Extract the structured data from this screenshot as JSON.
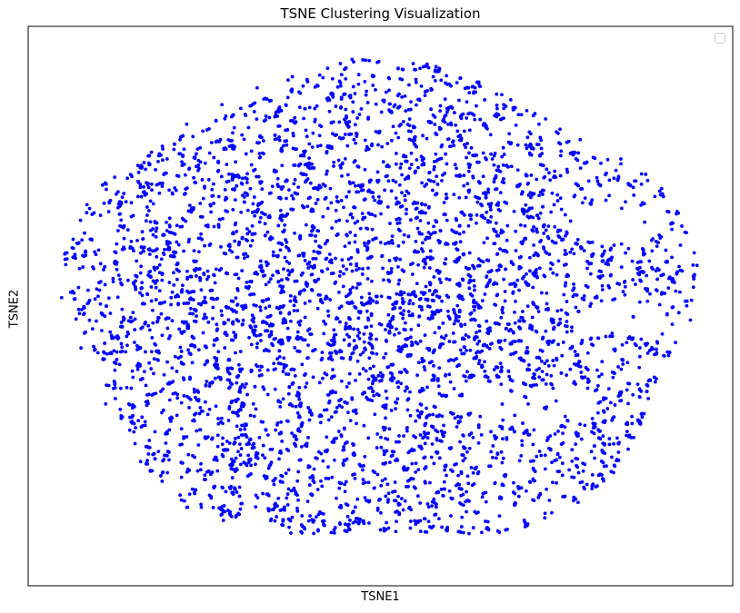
{
  "chart_data": {
    "type": "scatter",
    "title": "TSNE Clustering Visualization",
    "xlabel": "TSNE1",
    "ylabel": "TSNE2",
    "xlim": [
      -100,
      100
    ],
    "ylim": [
      -100,
      100
    ],
    "grid": false,
    "legend": {
      "placement": "top-right",
      "entries": []
    },
    "series": [
      {
        "marker_color": "#0000ff",
        "points_description": "dense cloud of ~6000 points forming a rough disc",
        "x": [
          -90.5,
          -85.0,
          -80.0,
          -78.0,
          -75.0,
          -70.0,
          -65.0,
          -60.0,
          -55.0,
          -50.0,
          -45.0,
          -40.0,
          -35.0,
          -30.0,
          -25.0,
          -20.0,
          -15.0,
          -10.0,
          -5.0,
          0.0,
          5.0,
          10.0,
          15.0,
          20.0,
          25.0,
          30.0,
          35.0,
          40.0,
          45.0,
          50.0,
          55.0,
          60.0,
          65.0,
          70.0,
          75.0,
          80.0,
          85.0,
          88.0
        ],
        "y": [
          3.0,
          -15.0,
          20.0,
          -35.0,
          40.0,
          -45.0,
          55.0,
          -55.0,
          65.0,
          -62.0,
          72.0,
          -68.0,
          78.0,
          -72.0,
          82.0,
          -75.0,
          85.0,
          -78.0,
          88.0,
          -80.0,
          85.0,
          -78.0,
          82.0,
          -75.0,
          78.0,
          -70.0,
          72.0,
          -65.0,
          65.0,
          -55.0,
          55.0,
          -45.0,
          45.0,
          -30.0,
          30.0,
          -10.0,
          5.0,
          -5.0
        ]
      }
    ]
  },
  "legend": {
    "empty": ""
  }
}
